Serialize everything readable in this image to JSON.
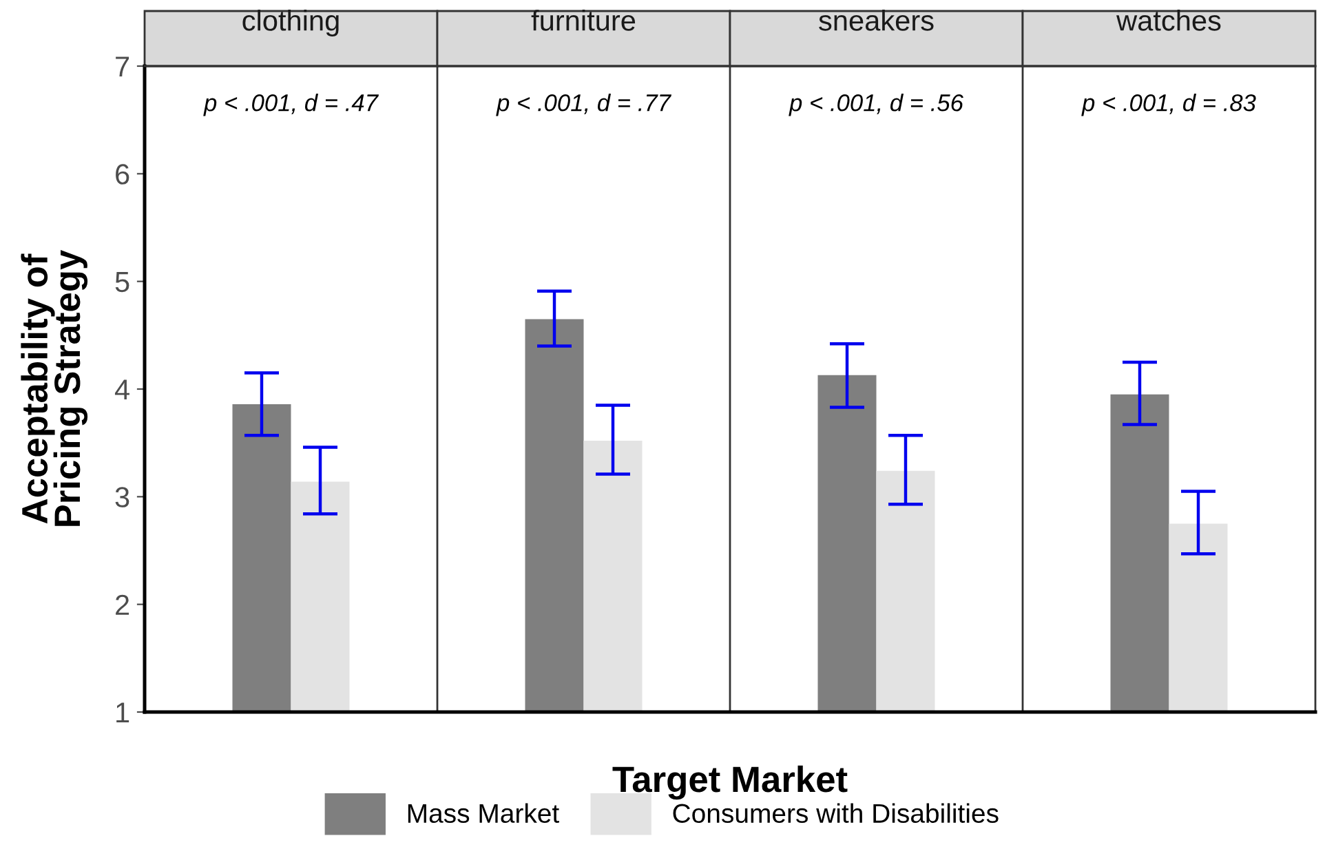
{
  "chart_data": {
    "type": "bar",
    "ylabel": "Acceptability of\nPricing Strategy",
    "xlabel": "Target Market",
    "categories": [
      "clothing",
      "furniture",
      "sneakers",
      "watches"
    ],
    "ylim": [
      1,
      7
    ],
    "yticks": [
      1,
      2,
      3,
      4,
      5,
      6,
      7
    ],
    "grid": false,
    "legend": "bottom",
    "annotations": [
      "p < .001, d = .47",
      "p < .001, d = .77",
      "p < .001, d = .56",
      "p < .001, d = .83"
    ],
    "series": [
      {
        "name": "Mass Market",
        "color": "#7f7f7f",
        "values": [
          3.86,
          4.65,
          4.13,
          3.95
        ],
        "errors": [
          [
            3.57,
            4.15
          ],
          [
            4.4,
            4.91
          ],
          [
            3.83,
            4.42
          ],
          [
            3.67,
            4.25
          ]
        ]
      },
      {
        "name": "Consumers with Disabilities",
        "color": "#e3e3e3",
        "values": [
          3.14,
          3.52,
          3.24,
          2.75
        ],
        "errors": [
          [
            2.84,
            3.46
          ],
          [
            3.21,
            3.85
          ],
          [
            2.93,
            3.57
          ],
          [
            2.47,
            3.05
          ]
        ]
      }
    ]
  }
}
